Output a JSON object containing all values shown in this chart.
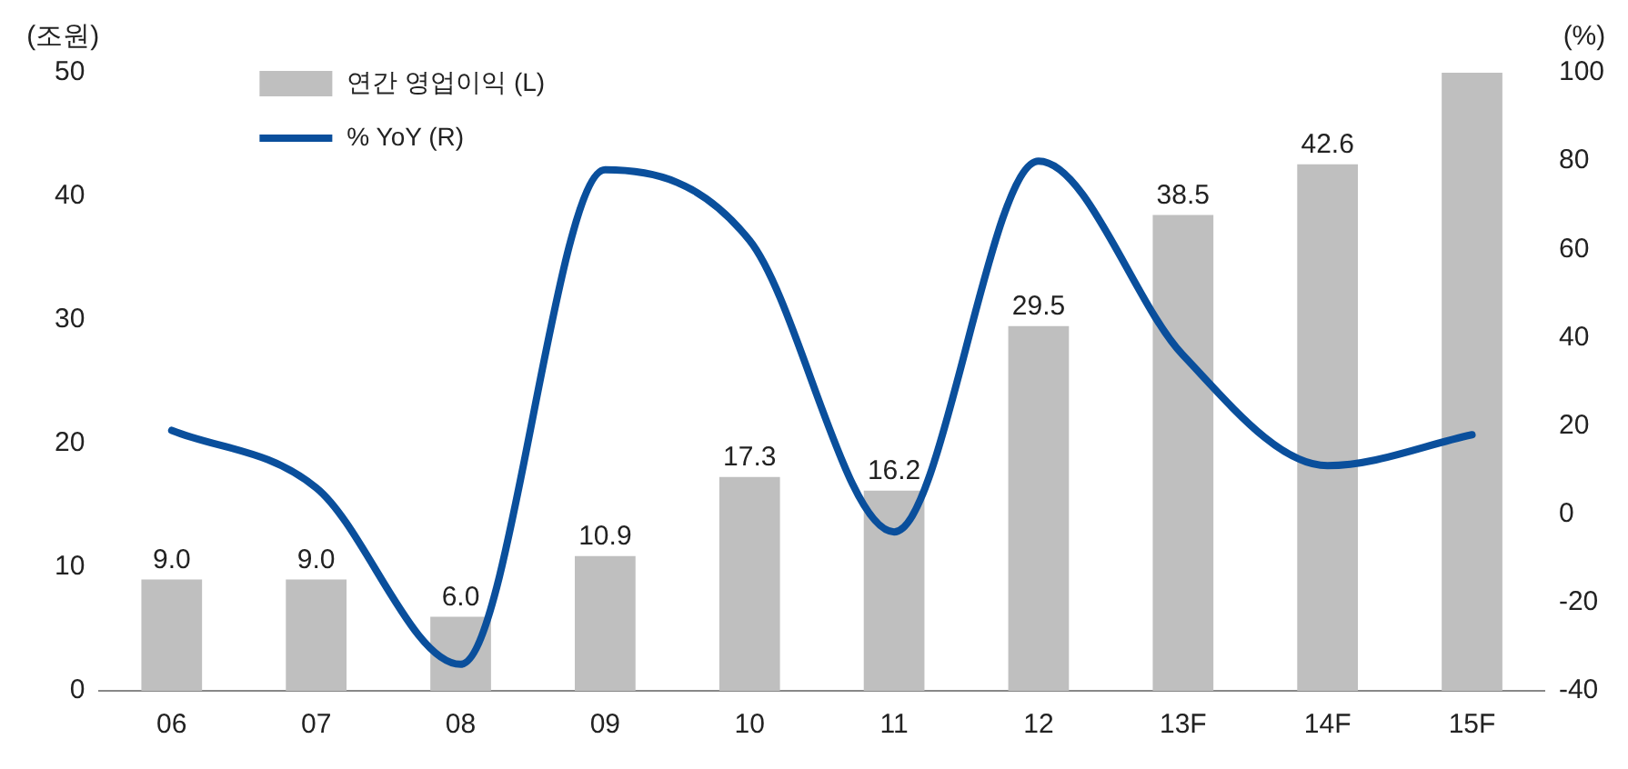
{
  "chart_data": {
    "type": "bar",
    "ylabel": "(조원)",
    "y2label": "(%)",
    "categories": [
      "06",
      "07",
      "08",
      "09",
      "10",
      "11",
      "12",
      "13F",
      "14F",
      "15F"
    ],
    "series": [
      {
        "name": "연간 영업이익 (L)",
        "color": "#bfbfbf",
        "values": [
          9.0,
          9.0,
          6.0,
          10.9,
          17.3,
          16.2,
          29.5,
          38.5,
          42.6,
          50
        ],
        "value_labels": [
          "9.0",
          "9.0",
          "6.0",
          "10.9",
          "17.3",
          "16.2",
          "29.5",
          "38.5",
          "42.6",
          null
        ]
      },
      {
        "name": "% YoY (R)",
        "type": "line",
        "axis": "y2",
        "color": "#0a4f9c",
        "values": [
          19,
          6,
          -34,
          78,
          62,
          -4,
          80,
          36,
          11,
          18
        ]
      }
    ],
    "ylim": [
      0,
      50
    ],
    "yticks": [
      0,
      10,
      20,
      30,
      40,
      50
    ],
    "y2lim": [
      -40,
      100
    ],
    "y2ticks": [
      -40,
      -20,
      0,
      20,
      40,
      60,
      80,
      100
    ],
    "grid": false,
    "legend": "top left",
    "marker": "none",
    "line_style": "solid"
  }
}
